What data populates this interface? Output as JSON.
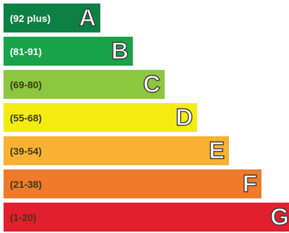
{
  "chart_data": {
    "type": "bar",
    "title": "",
    "xlabel": "",
    "ylabel": "",
    "categories": [
      "A",
      "B",
      "C",
      "D",
      "E",
      "F",
      "G"
    ],
    "ranges": [
      "(92 plus)",
      "(81-91)",
      "(69-80)",
      "(55-68)",
      "(39-54)",
      "(21-38)",
      "(1-20)"
    ],
    "values": [
      1,
      2,
      3,
      4,
      5,
      6,
      7
    ],
    "colors": [
      "#0d8043",
      "#1aa24a",
      "#8dc63f",
      "#f4ec11",
      "#f8b133",
      "#ee7a2a",
      "#e21f2d"
    ],
    "range_text_colors": [
      "#ffffff",
      "#ffffff",
      "#3a3a1a",
      "#3a3a1a",
      "#3a3a1a",
      "#3a3a1a",
      "#3a3a1a"
    ],
    "grid": false,
    "legend": "none"
  }
}
